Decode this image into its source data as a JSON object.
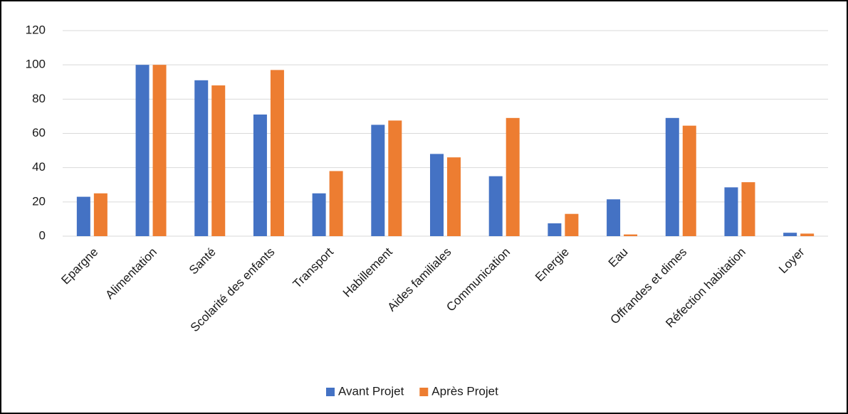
{
  "chart_data": {
    "type": "bar",
    "categories": [
      "Epargne",
      "Alimentation",
      "Santé",
      "Scolarité des enfants",
      "Transport",
      "Habillement",
      "Aides familiales",
      "Communication",
      "Energie",
      "Eau",
      "Offrandes et dimes",
      "Réfection habitation",
      "Loyer"
    ],
    "series": [
      {
        "name": "Avant Projet",
        "color": "#4472c4",
        "values": [
          23,
          100,
          91,
          71,
          25,
          65,
          48,
          35,
          7.5,
          21.5,
          69,
          28.5,
          2
        ]
      },
      {
        "name": "Après Projet",
        "color": "#ed7d31",
        "values": [
          25,
          100,
          88,
          97,
          38,
          67.5,
          46,
          69,
          13,
          1,
          64.5,
          31.5,
          1.5
        ]
      }
    ],
    "ylim": [
      0,
      120
    ],
    "yticks": [
      0,
      20,
      40,
      60,
      80,
      100,
      120
    ],
    "grid": true,
    "legend": "bottom"
  }
}
